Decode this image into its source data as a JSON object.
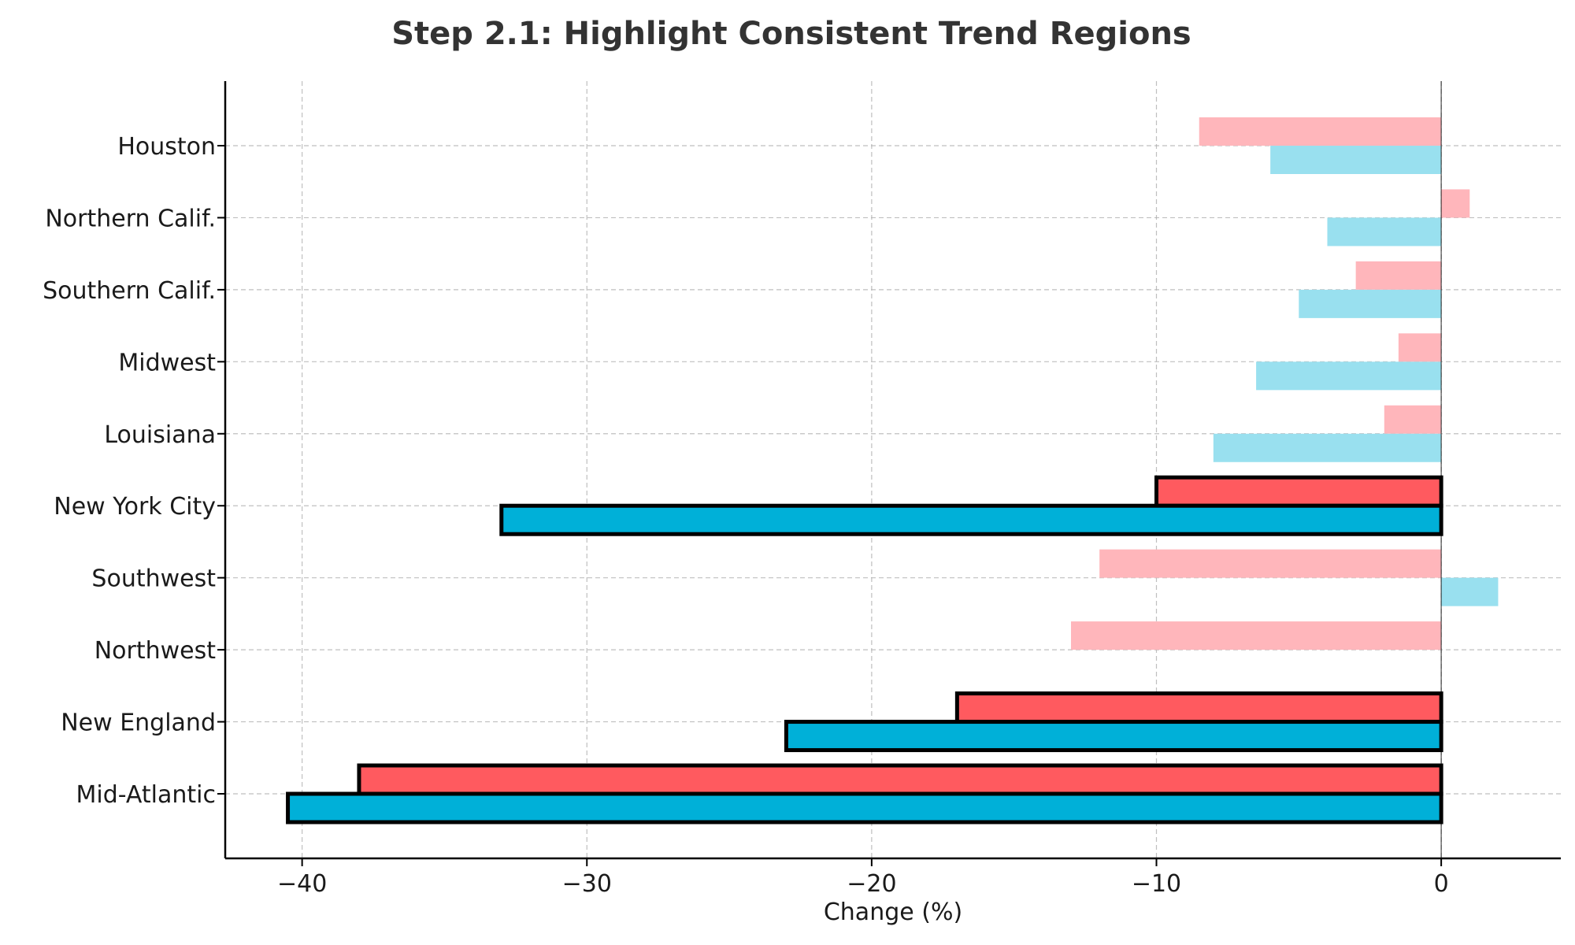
{
  "chart_data": {
    "type": "bar",
    "orientation": "horizontal",
    "title": "Step 2.1: Highlight Consistent Trend Regions",
    "xlabel": "Change (%)",
    "ylabel": "",
    "xlim": [
      -42.7,
      4.2
    ],
    "xticks": [
      -40,
      -30,
      -20,
      -10,
      0
    ],
    "xtick_labels": [
      "−40",
      "−30",
      "−20",
      "−10",
      "0"
    ],
    "grid": true,
    "categories": [
      "Mid-Atlantic",
      "New England",
      "Northwest",
      "Southwest",
      "New York City",
      "Louisiana",
      "Midwest",
      "Southern Calif.",
      "Northern Calif.",
      "Houston"
    ],
    "series": [
      {
        "values": [
          -38,
          -17,
          -13,
          -12,
          -10,
          -2,
          -1.5,
          -3,
          1,
          -8.5
        ]
      },
      {
        "values": [
          -40.5,
          -23,
          0,
          2,
          -33,
          -8,
          -6.5,
          -5,
          -4,
          -6
        ]
      }
    ],
    "highlighted": [
      "Mid-Atlantic",
      "New England",
      "New York City"
    ],
    "colors": {
      "series1_highlight": "#ff5a5f",
      "series1_faded": "#ffb6bb",
      "series2_highlight": "#00b0d8",
      "series2_faded": "#99e0ef"
    }
  }
}
